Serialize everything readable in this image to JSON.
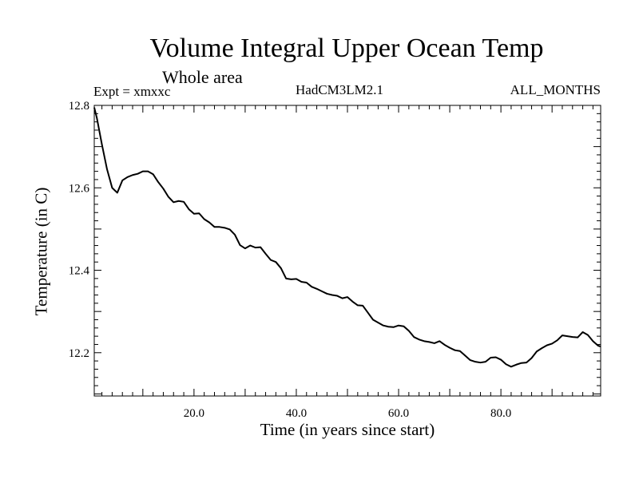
{
  "chart_data": {
    "type": "line",
    "title": "Volume Integral Upper Ocean Temp",
    "subtitle": "Whole area",
    "annotations": {
      "experiment": "Expt = xmxxc",
      "model": "HadCM3LM2.1",
      "period": "ALL_MONTHS"
    },
    "xlabel": "Time (in years since start)",
    "ylabel": "Temperature (in C)",
    "xlim": [
      0.5,
      99.5
    ],
    "ylim": [
      12.095,
      12.8
    ],
    "xticks": [
      20,
      40,
      60,
      80
    ],
    "xtick_labels": [
      "20.0",
      "40.0",
      "60.0",
      "80.0"
    ],
    "yticks": [
      12.2,
      12.4,
      12.6,
      12.8
    ],
    "ytick_labels": [
      "12.2",
      "12.4",
      "12.6",
      "12.8"
    ],
    "grid": false,
    "series": [
      {
        "name": "",
        "x": [
          0.5,
          1,
          2,
          3,
          4,
          5,
          6,
          7,
          8,
          9,
          10,
          11,
          12,
          13,
          14,
          15,
          16,
          17,
          18,
          19,
          20,
          21,
          22,
          23,
          24,
          25,
          26,
          27,
          28,
          29,
          30,
          31,
          32,
          33,
          34,
          35,
          36,
          37,
          38,
          39,
          40,
          41,
          42,
          43,
          44,
          45,
          46,
          47,
          48,
          49,
          50,
          51,
          52,
          53,
          54,
          55,
          56,
          57,
          58,
          59,
          60,
          61,
          62,
          63,
          64,
          65,
          66,
          67,
          68,
          69,
          70,
          71,
          72,
          73,
          74,
          75,
          76,
          77,
          78,
          79,
          80,
          81,
          82,
          83,
          84,
          85,
          86,
          87,
          88,
          89,
          90,
          91,
          92,
          93,
          94,
          95,
          96,
          97,
          98,
          99,
          99.5
        ],
        "y": [
          12.795,
          12.77,
          12.705,
          12.645,
          12.6,
          12.588,
          12.618,
          12.626,
          12.631,
          12.634,
          12.64,
          12.64,
          12.633,
          12.614,
          12.598,
          12.578,
          12.565,
          12.568,
          12.566,
          12.548,
          12.537,
          12.538,
          12.524,
          12.516,
          12.505,
          12.505,
          12.503,
          12.499,
          12.486,
          12.461,
          12.453,
          12.46,
          12.455,
          12.456,
          12.44,
          12.425,
          12.42,
          12.405,
          12.38,
          12.378,
          12.379,
          12.372,
          12.37,
          12.36,
          12.355,
          12.349,
          12.343,
          12.34,
          12.338,
          12.332,
          12.335,
          12.324,
          12.315,
          12.314,
          12.297,
          12.28,
          12.273,
          12.266,
          12.263,
          12.262,
          12.266,
          12.264,
          12.253,
          12.238,
          12.232,
          12.228,
          12.226,
          12.223,
          12.228,
          12.219,
          12.212,
          12.206,
          12.204,
          12.193,
          12.182,
          12.178,
          12.176,
          12.178,
          12.188,
          12.189,
          12.183,
          12.172,
          12.166,
          12.171,
          12.175,
          12.176,
          12.187,
          12.203,
          12.211,
          12.218,
          12.222,
          12.23,
          12.242,
          12.24,
          12.238,
          12.237,
          12.25,
          12.243,
          12.228,
          12.217,
          12.215
        ]
      }
    ]
  }
}
